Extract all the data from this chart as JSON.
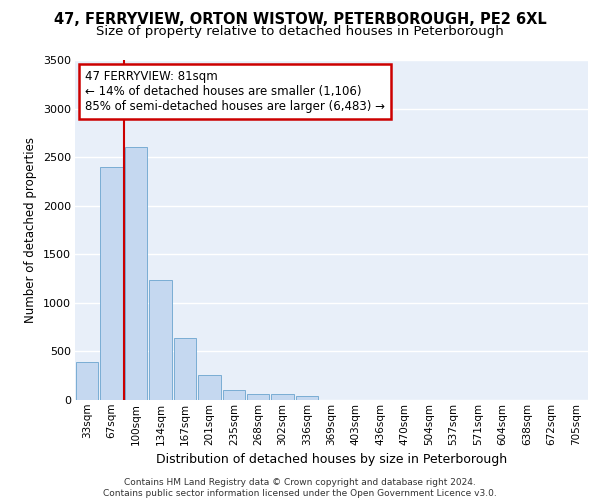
{
  "title": "47, FERRYVIEW, ORTON WISTOW, PETERBOROUGH, PE2 6XL",
  "subtitle": "Size of property relative to detached houses in Peterborough",
  "xlabel": "Distribution of detached houses by size in Peterborough",
  "ylabel": "Number of detached properties",
  "categories": [
    "33sqm",
    "67sqm",
    "100sqm",
    "134sqm",
    "167sqm",
    "201sqm",
    "235sqm",
    "268sqm",
    "302sqm",
    "336sqm",
    "369sqm",
    "403sqm",
    "436sqm",
    "470sqm",
    "504sqm",
    "537sqm",
    "571sqm",
    "604sqm",
    "638sqm",
    "672sqm",
    "705sqm"
  ],
  "values": [
    390,
    2400,
    2600,
    1240,
    640,
    255,
    100,
    60,
    58,
    45,
    0,
    0,
    0,
    0,
    0,
    0,
    0,
    0,
    0,
    0,
    0
  ],
  "bar_color": "#c5d8f0",
  "bar_edgecolor": "#7aadd4",
  "red_line_x": 1.5,
  "annotation_text": "47 FERRYVIEW: 81sqm\n← 14% of detached houses are smaller (1,106)\n85% of semi-detached houses are larger (6,483) →",
  "annotation_box_color": "#ffffff",
  "annotation_box_edgecolor": "#cc0000",
  "footer": "Contains HM Land Registry data © Crown copyright and database right 2024.\nContains public sector information licensed under the Open Government Licence v3.0.",
  "ylim": [
    0,
    3500
  ],
  "yticks": [
    0,
    500,
    1000,
    1500,
    2000,
    2500,
    3000,
    3500
  ],
  "bg_color": "#e8eff9",
  "grid_color": "#ffffff",
  "title_fontsize": 10.5,
  "subtitle_fontsize": 9.5
}
